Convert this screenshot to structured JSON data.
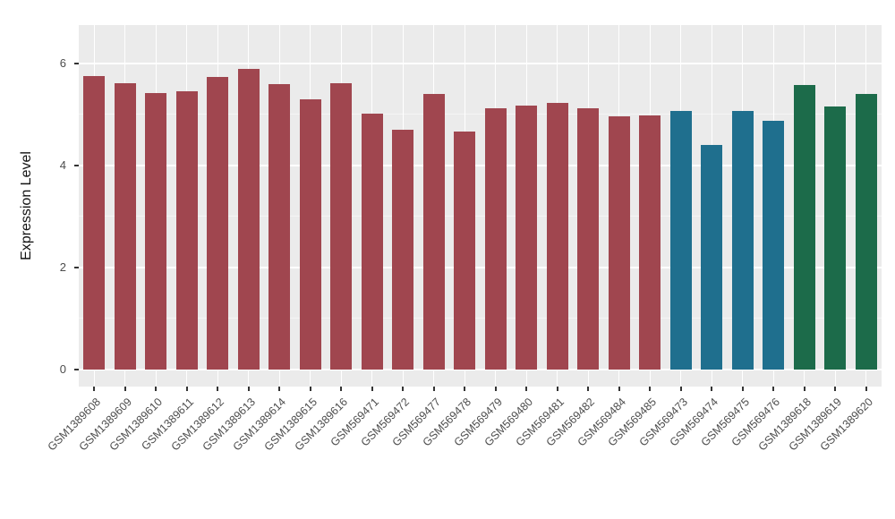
{
  "chart_data": {
    "type": "bar",
    "title": "",
    "xlabel": "",
    "ylabel": "Expression Level",
    "ylim": [
      0,
      6.3
    ],
    "yticks": [
      0,
      2,
      4,
      6
    ],
    "yticks_minor": [
      1,
      3,
      5
    ],
    "grid": "on",
    "legend": "none",
    "categories": [
      "GSM1389608",
      "GSM1389609",
      "GSM1389610",
      "GSM1389611",
      "GSM1389612",
      "GSM1389613",
      "GSM1389614",
      "GSM1389615",
      "GSM1389616",
      "GSM569471",
      "GSM569472",
      "GSM569477",
      "GSM569478",
      "GSM569479",
      "GSM569480",
      "GSM569481",
      "GSM569482",
      "GSM569484",
      "GSM569485",
      "GSM569473",
      "GSM569474",
      "GSM569475",
      "GSM569476",
      "GSM1389618",
      "GSM1389619",
      "GSM1389620"
    ],
    "values": [
      5.75,
      5.62,
      5.43,
      5.45,
      5.74,
      5.9,
      5.6,
      5.3,
      5.62,
      5.02,
      4.7,
      5.4,
      4.67,
      5.13,
      5.17,
      5.23,
      5.13,
      4.97,
      4.98,
      5.07,
      4.4,
      5.07,
      4.87,
      5.58,
      5.15,
      5.4
    ],
    "bar_colors": [
      "#A0464F",
      "#A0464F",
      "#A0464F",
      "#A0464F",
      "#A0464F",
      "#A0464F",
      "#A0464F",
      "#A0464F",
      "#A0464F",
      "#A0464F",
      "#A0464F",
      "#A0464F",
      "#A0464F",
      "#A0464F",
      "#A0464F",
      "#A0464F",
      "#A0464F",
      "#A0464F",
      "#A0464F",
      "#1F6F8E",
      "#1F6F8E",
      "#1F6F8E",
      "#1F6F8E",
      "#1C6B4A",
      "#1C6B4A",
      "#1C6B4A"
    ]
  },
  "style": {
    "panel_bg": "#EBEBEB",
    "grid_major": "#FFFFFF",
    "grid_minor": "#F5F5F5",
    "axis_text": "#4D4D4D",
    "tick_mark": "#333333"
  }
}
